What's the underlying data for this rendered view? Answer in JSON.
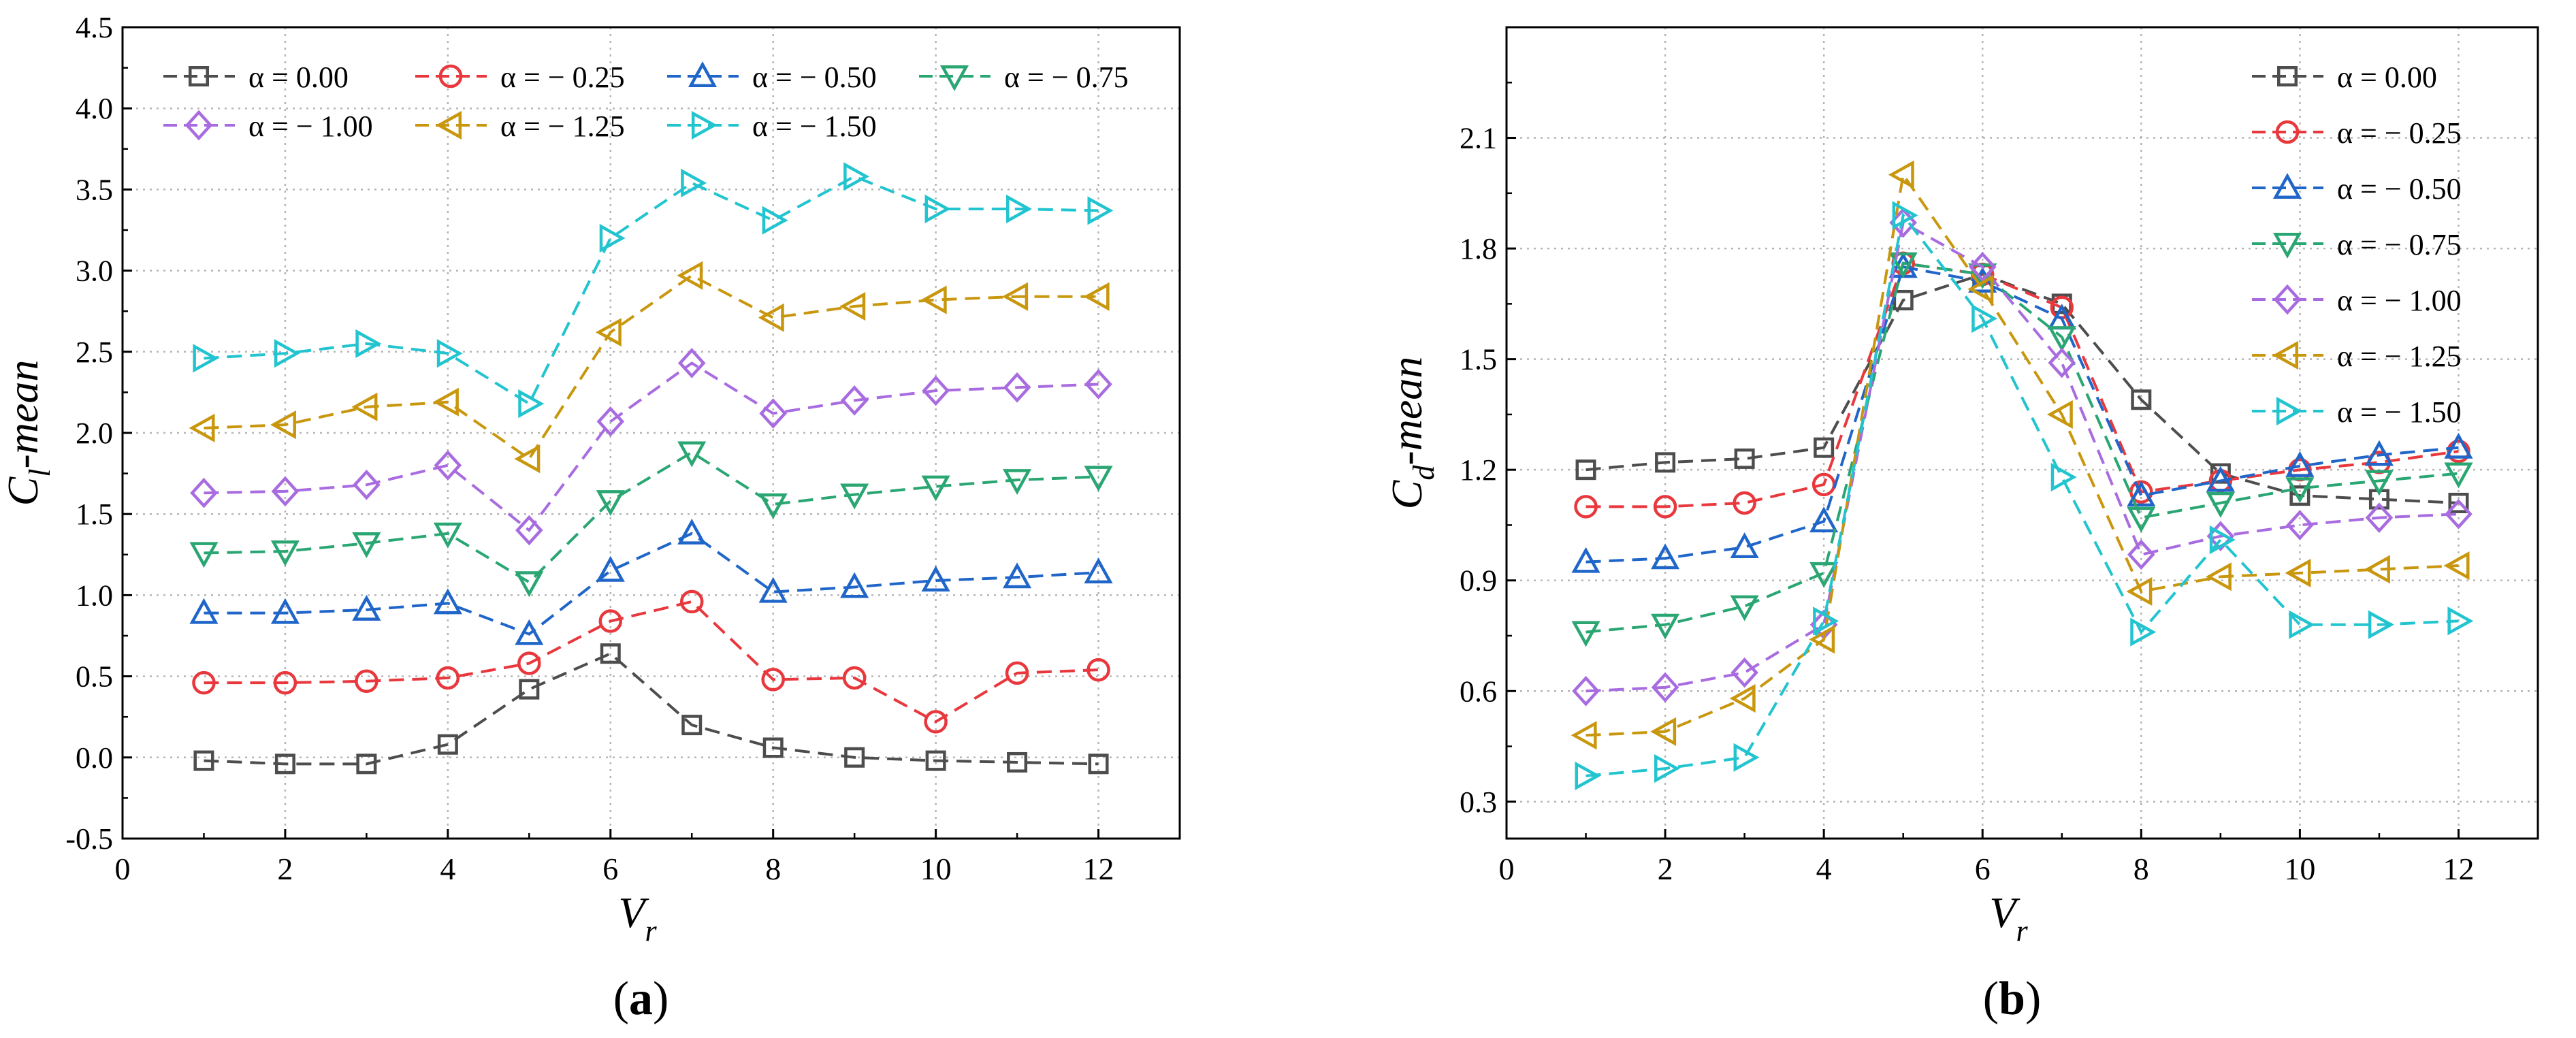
{
  "colors": {
    "s0": "#4d4d4d",
    "s1": "#e8383d",
    "s2": "#2066c9",
    "s3": "#2aa673",
    "s4": "#a86ce0",
    "s5": "#c9970e",
    "s6": "#22c4cf"
  },
  "chart_data": [
    {
      "type": "line",
      "panel_label": "(a)",
      "ylabel_main": "C",
      "ylabel_sub": "l",
      "ylabel_suffix": "-mean",
      "xlabel_main": "V",
      "xlabel_sub": "r",
      "xlim": [
        0,
        13
      ],
      "ylim": [
        -0.5,
        4.5
      ],
      "xticks": [
        0,
        2,
        4,
        6,
        8,
        10,
        12
      ],
      "xtick_labels": [
        "0",
        "2",
        "4",
        "6",
        "8",
        "10",
        "12"
      ],
      "yticks": [
        -0.5,
        0.0,
        0.5,
        1.0,
        1.5,
        2.0,
        2.5,
        3.0,
        3.5,
        4.0,
        4.5
      ],
      "ytick_labels": [
        "-0.5",
        "0.0",
        "0.5",
        "1.0",
        "1.5",
        "2.0",
        "2.5",
        "3.0",
        "3.5",
        "4.0",
        "4.5"
      ],
      "grid": true,
      "legend_position": "top",
      "x": [
        1,
        2,
        3,
        4,
        5,
        6,
        7,
        8,
        9,
        10,
        11,
        12
      ],
      "series": [
        {
          "name": "α =    0.00",
          "marker": "square",
          "color_key": "s0",
          "values": [
            -0.02,
            -0.04,
            -0.04,
            0.08,
            0.42,
            0.64,
            0.2,
            0.06,
            0.0,
            -0.02,
            -0.03,
            -0.04
          ]
        },
        {
          "name": "α = − 0.25",
          "marker": "circle",
          "color_key": "s1",
          "values": [
            0.46,
            0.46,
            0.47,
            0.49,
            0.58,
            0.84,
            0.96,
            0.48,
            0.49,
            0.22,
            0.52,
            0.54
          ]
        },
        {
          "name": "α = − 0.50",
          "marker": "triangle-up",
          "color_key": "s2",
          "values": [
            0.89,
            0.89,
            0.91,
            0.95,
            0.76,
            1.15,
            1.38,
            1.02,
            1.05,
            1.09,
            1.11,
            1.14
          ]
        },
        {
          "name": "α = − 0.75",
          "marker": "triangle-down",
          "color_key": "s3",
          "values": [
            1.26,
            1.27,
            1.32,
            1.38,
            1.08,
            1.58,
            1.88,
            1.56,
            1.62,
            1.67,
            1.71,
            1.73
          ]
        },
        {
          "name": "α = − 1.00",
          "marker": "diamond",
          "color_key": "s4",
          "values": [
            1.63,
            1.64,
            1.68,
            1.8,
            1.4,
            2.07,
            2.43,
            2.12,
            2.2,
            2.26,
            2.28,
            2.3
          ]
        },
        {
          "name": "α = − 1.25",
          "marker": "triangle-left",
          "color_key": "s5",
          "values": [
            2.03,
            2.05,
            2.16,
            2.19,
            1.84,
            2.62,
            2.97,
            2.71,
            2.78,
            2.82,
            2.84,
            2.84
          ]
        },
        {
          "name": "α = − 1.50",
          "marker": "triangle-right",
          "color_key": "s6",
          "values": [
            2.46,
            2.49,
            2.55,
            2.49,
            2.18,
            3.2,
            3.54,
            3.31,
            3.58,
            3.38,
            3.38,
            3.37
          ]
        }
      ]
    },
    {
      "type": "line",
      "panel_label": "(b)",
      "ylabel_main": "C",
      "ylabel_sub": "d",
      "ylabel_suffix": "-mean",
      "xlabel_main": "V",
      "xlabel_sub": "r",
      "xlim": [
        0,
        13
      ],
      "ylim": [
        0.2,
        2.4
      ],
      "xticks": [
        0,
        2,
        4,
        6,
        8,
        10,
        12
      ],
      "xtick_labels": [
        "0",
        "2",
        "4",
        "6",
        "8",
        "10",
        "12"
      ],
      "yticks": [
        0.3,
        0.6,
        0.9,
        1.2,
        1.5,
        1.8,
        2.1
      ],
      "ytick_labels": [
        "0.3",
        "0.6",
        "0.9",
        "1.2",
        "1.5",
        "1.8",
        "2.1"
      ],
      "grid": true,
      "legend_position": "top-right",
      "x": [
        1,
        2,
        3,
        4,
        5,
        6,
        7,
        8,
        9,
        10,
        11,
        12
      ],
      "series": [
        {
          "name": "α =    0.00",
          "marker": "square",
          "color_key": "s0",
          "values": [
            1.2,
            1.22,
            1.23,
            1.26,
            1.66,
            1.73,
            1.65,
            1.39,
            1.19,
            1.13,
            1.12,
            1.11
          ]
        },
        {
          "name": "α = − 0.25",
          "marker": "circle",
          "color_key": "s1",
          "values": [
            1.1,
            1.1,
            1.11,
            1.16,
            1.76,
            1.73,
            1.64,
            1.14,
            1.17,
            1.2,
            1.22,
            1.25
          ]
        },
        {
          "name": "α = − 0.50",
          "marker": "triangle-up",
          "color_key": "s2",
          "values": [
            0.95,
            0.96,
            0.99,
            1.06,
            1.75,
            1.71,
            1.61,
            1.13,
            1.17,
            1.21,
            1.24,
            1.26
          ]
        },
        {
          "name": "α = − 0.75",
          "marker": "triangle-down",
          "color_key": "s3",
          "values": [
            0.76,
            0.78,
            0.83,
            0.92,
            1.76,
            1.73,
            1.56,
            1.07,
            1.11,
            1.15,
            1.17,
            1.19
          ]
        },
        {
          "name": "α = − 1.00",
          "marker": "diamond",
          "color_key": "s4",
          "values": [
            0.6,
            0.61,
            0.65,
            0.78,
            1.87,
            1.75,
            1.49,
            0.97,
            1.02,
            1.05,
            1.07,
            1.08
          ]
        },
        {
          "name": "α = − 1.25",
          "marker": "triangle-left",
          "color_key": "s5",
          "values": [
            0.48,
            0.49,
            0.58,
            0.74,
            2.0,
            1.69,
            1.35,
            0.87,
            0.91,
            0.92,
            0.93,
            0.94
          ]
        },
        {
          "name": "α = − 1.50",
          "marker": "triangle-right",
          "color_key": "s6",
          "values": [
            0.37,
            0.39,
            0.42,
            0.79,
            1.89,
            1.61,
            1.18,
            0.76,
            1.01,
            0.78,
            0.78,
            0.79
          ]
        }
      ]
    }
  ]
}
